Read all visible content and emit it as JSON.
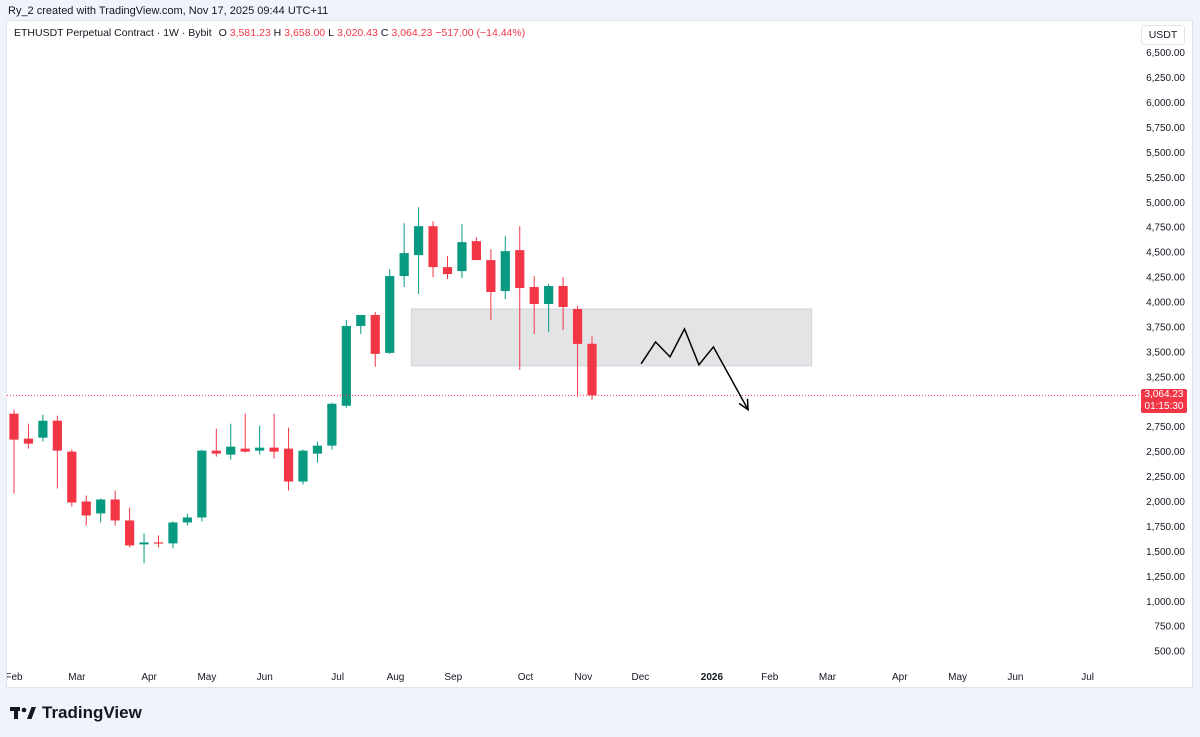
{
  "caption": "Ry_2 created with TradingView.com, Nov 17, 2025 09:44 UTC+11",
  "legend": {
    "symbol": "ETHUSDT Perpetual Contract · 1W · Bybit",
    "open_label": "O",
    "open": "3,581.23",
    "high_label": "H",
    "high": "3,658.00",
    "low_label": "L",
    "low": "3,020.43",
    "close_label": "C",
    "close": "3,064.23",
    "change": "−517.00 (−14.44%)"
  },
  "currency": "USDT",
  "price_badge": {
    "price": "3,064.23",
    "countdown": "01:15:30"
  },
  "brand": "TradingView",
  "colors": {
    "up": "#089981",
    "down": "#f23645",
    "grid": "#ffffff",
    "zone": "#e3e4e6",
    "text": "#131722",
    "drawing": "#000000"
  },
  "chart_data": {
    "type": "candlestick",
    "title": "ETHUSDT Perpetual Contract · 1W · Bybit",
    "xlabel": "",
    "ylabel": "USDT",
    "ylim": [
      300,
      6700
    ],
    "y_ticks": [
      "6,500.00",
      "6,250.00",
      "6,000.00",
      "5,750.00",
      "5,500.00",
      "5,250.00",
      "5,000.00",
      "4,750.00",
      "4,500.00",
      "4,250.00",
      "4,000.00",
      "3,750.00",
      "3,500.00",
      "3,250.00",
      "2,750.00",
      "2,500.00",
      "2,250.00",
      "2,000.00",
      "1,750.00",
      "1,500.00",
      "1,250.00",
      "1,000.00",
      "750.00",
      "500.00"
    ],
    "x_ticks": [
      {
        "label": "Feb",
        "week": 0
      },
      {
        "label": "Mar",
        "week": 4.35
      },
      {
        "label": "Apr",
        "week": 9.35
      },
      {
        "label": "May",
        "week": 13.35
      },
      {
        "label": "Jun",
        "week": 17.35
      },
      {
        "label": "Jul",
        "week": 22.4
      },
      {
        "label": "Aug",
        "week": 26.4
      },
      {
        "label": "Sep",
        "week": 30.4
      },
      {
        "label": "Oct",
        "week": 35.4
      },
      {
        "label": "Nov",
        "week": 39.4
      },
      {
        "label": "Dec",
        "week": 43.35
      },
      {
        "label": "2026",
        "week": 48.3
      },
      {
        "label": "Feb",
        "week": 52.3
      },
      {
        "label": "Mar",
        "week": 56.3
      },
      {
        "label": "Apr",
        "week": 61.3
      },
      {
        "label": "May",
        "week": 65.3
      },
      {
        "label": "Jun",
        "week": 69.3
      },
      {
        "label": "Jul",
        "week": 74.3
      }
    ],
    "candles": [
      {
        "o": 2880,
        "h": 2920,
        "l": 2080,
        "c": 2620
      },
      {
        "o": 2630,
        "h": 2780,
        "l": 2530,
        "c": 2580
      },
      {
        "o": 2640,
        "h": 2870,
        "l": 2600,
        "c": 2810
      },
      {
        "o": 2810,
        "h": 2860,
        "l": 2130,
        "c": 2510
      },
      {
        "o": 2500,
        "h": 2520,
        "l": 1950,
        "c": 1990
      },
      {
        "o": 2000,
        "h": 2060,
        "l": 1760,
        "c": 1860
      },
      {
        "o": 1880,
        "h": 2030,
        "l": 1790,
        "c": 2020
      },
      {
        "o": 2020,
        "h": 2110,
        "l": 1760,
        "c": 1810
      },
      {
        "o": 1810,
        "h": 1940,
        "l": 1540,
        "c": 1560
      },
      {
        "o": 1570,
        "h": 1680,
        "l": 1380,
        "c": 1590
      },
      {
        "o": 1590,
        "h": 1660,
        "l": 1540,
        "c": 1580
      },
      {
        "o": 1580,
        "h": 1800,
        "l": 1530,
        "c": 1790
      },
      {
        "o": 1790,
        "h": 1880,
        "l": 1760,
        "c": 1840
      },
      {
        "o": 1840,
        "h": 2520,
        "l": 1800,
        "c": 2510
      },
      {
        "o": 2510,
        "h": 2730,
        "l": 2450,
        "c": 2480
      },
      {
        "o": 2470,
        "h": 2780,
        "l": 2420,
        "c": 2550
      },
      {
        "o": 2530,
        "h": 2880,
        "l": 2490,
        "c": 2500
      },
      {
        "o": 2510,
        "h": 2760,
        "l": 2470,
        "c": 2540
      },
      {
        "o": 2540,
        "h": 2880,
        "l": 2430,
        "c": 2500
      },
      {
        "o": 2530,
        "h": 2740,
        "l": 2110,
        "c": 2200
      },
      {
        "o": 2200,
        "h": 2520,
        "l": 2170,
        "c": 2510
      },
      {
        "o": 2480,
        "h": 2600,
        "l": 2390,
        "c": 2560
      },
      {
        "o": 2560,
        "h": 2990,
        "l": 2520,
        "c": 2980
      },
      {
        "o": 2960,
        "h": 3820,
        "l": 2940,
        "c": 3760
      },
      {
        "o": 3760,
        "h": 3860,
        "l": 3680,
        "c": 3870
      },
      {
        "o": 3870,
        "h": 3900,
        "l": 3350,
        "c": 3480
      },
      {
        "o": 3490,
        "h": 4330,
        "l": 3480,
        "c": 4260
      },
      {
        "o": 4260,
        "h": 4790,
        "l": 4150,
        "c": 4490
      },
      {
        "o": 4470,
        "h": 4950,
        "l": 4080,
        "c": 4760
      },
      {
        "o": 4760,
        "h": 4810,
        "l": 4250,
        "c": 4350
      },
      {
        "o": 4350,
        "h": 4460,
        "l": 4230,
        "c": 4280
      },
      {
        "o": 4310,
        "h": 4780,
        "l": 4240,
        "c": 4600
      },
      {
        "o": 4610,
        "h": 4650,
        "l": 4440,
        "c": 4420
      },
      {
        "o": 4420,
        "h": 4530,
        "l": 3820,
        "c": 4100
      },
      {
        "o": 4110,
        "h": 4660,
        "l": 4030,
        "c": 4510
      },
      {
        "o": 4520,
        "h": 4760,
        "l": 3320,
        "c": 4140
      },
      {
        "o": 4150,
        "h": 4260,
        "l": 3680,
        "c": 3980
      },
      {
        "o": 3980,
        "h": 4180,
        "l": 3700,
        "c": 4160
      },
      {
        "o": 4160,
        "h": 4250,
        "l": 3720,
        "c": 3950
      },
      {
        "o": 3930,
        "h": 3960,
        "l": 3050,
        "c": 3580
      },
      {
        "o": 3581.23,
        "h": 3658,
        "l": 3020.43,
        "c": 3064.23
      }
    ],
    "current_price": 3064.23,
    "annotations": [
      {
        "type": "rectangle-zone",
        "week_from": 27.5,
        "week_to": 55.2,
        "price_from": 3360,
        "price_to": 3930
      },
      {
        "type": "projection-path",
        "points": [
          [
            43.4,
            3380
          ],
          [
            44.4,
            3600
          ],
          [
            45.4,
            3450
          ],
          [
            46.4,
            3730
          ],
          [
            47.4,
            3370
          ],
          [
            48.4,
            3550
          ],
          [
            50.8,
            2920
          ]
        ]
      }
    ]
  }
}
